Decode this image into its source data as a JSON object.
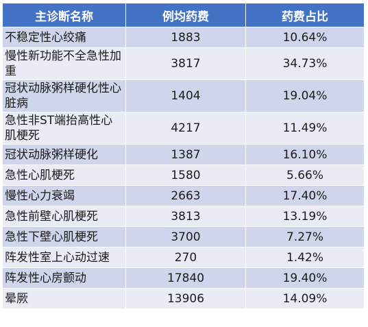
{
  "table": {
    "headers": [
      "主诊断名称",
      "例均药费",
      "药费占比"
    ],
    "rows": [
      {
        "name": "不稳定性心绞痛",
        "avg_cost": "1883",
        "ratio": "10.64%"
      },
      {
        "name": "慢性新功能不全急性加重",
        "avg_cost": "3817",
        "ratio": "34.73%"
      },
      {
        "name": "冠状动脉粥样硬化性心脏病",
        "avg_cost": "1404",
        "ratio": "19.04%"
      },
      {
        "name": "急性非ST端抬高性心肌梗死",
        "avg_cost": "4217",
        "ratio": "11.49%"
      },
      {
        "name": "冠状动脉粥样硬化",
        "avg_cost": "1387",
        "ratio": "16.10%"
      },
      {
        "name": "急性心肌梗死",
        "avg_cost": "1580",
        "ratio": "5.66%"
      },
      {
        "name": "慢性心力衰竭",
        "avg_cost": "2663",
        "ratio": "17.40%"
      },
      {
        "name": "急性前壁心肌梗死",
        "avg_cost": "3813",
        "ratio": "13.19%"
      },
      {
        "name": "急性下壁心肌梗死",
        "avg_cost": "3700",
        "ratio": "7.27%"
      },
      {
        "name": "阵发性室上心动过速",
        "avg_cost": "270",
        "ratio": "1.42%"
      },
      {
        "name": "阵发性心房颤动",
        "avg_cost": "17840",
        "ratio": "19.40%"
      },
      {
        "name": "晕厥",
        "avg_cost": "13906",
        "ratio": "14.09%"
      }
    ]
  },
  "colors": {
    "header_bg": "#4472c4",
    "row_odd_bg": "#cfd5ea",
    "row_even_bg": "#e9ebf5"
  }
}
